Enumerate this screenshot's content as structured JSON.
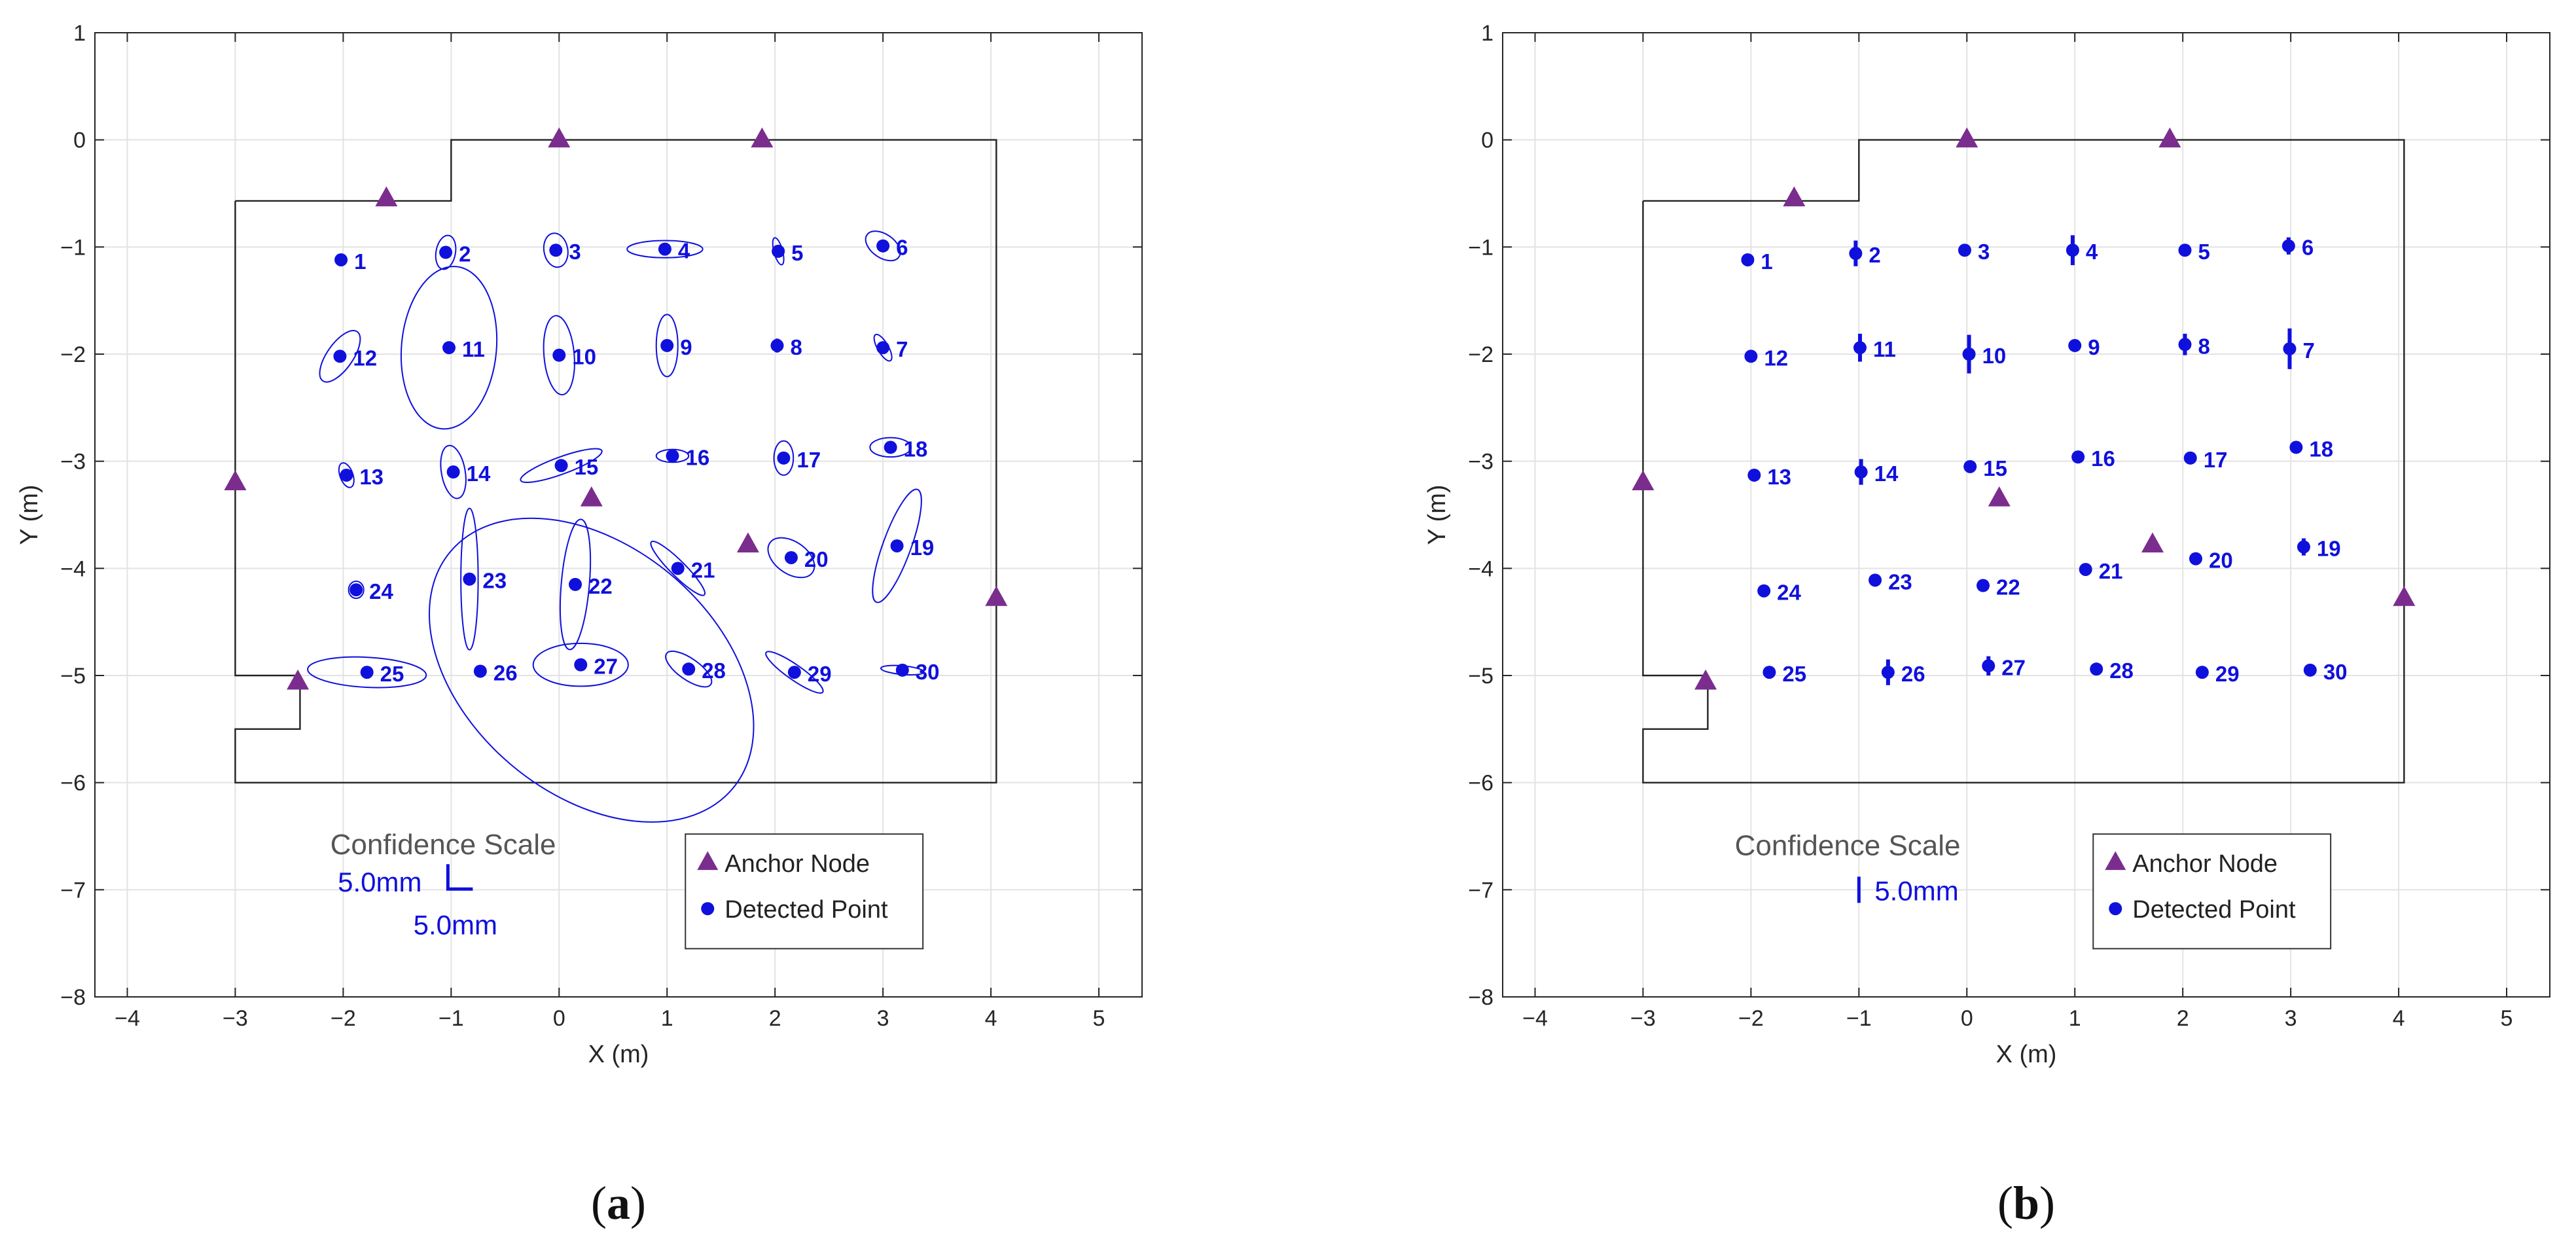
{
  "chart_data": [
    {
      "type": "scatter",
      "panel_label": "(a)",
      "panel_letter": "a",
      "xlabel": "X (m)",
      "ylabel": "Y (m)",
      "xlim": [
        -4.3,
        5.4
      ],
      "ylim": [
        -8,
        1
      ],
      "xticks": [
        -4,
        -3,
        -2,
        -1,
        0,
        1,
        2,
        3,
        4,
        5
      ],
      "yticks": [
        -8,
        -7,
        -6,
        -5,
        -4,
        -3,
        -2,
        -1,
        0,
        1
      ],
      "grid": true,
      "uncertainty": "ellipse",
      "confidence_scale": {
        "title": "Confidence Scale",
        "x_label": "5.0mm",
        "y_label": "5.0mm"
      },
      "legend": {
        "position": "bottom-right",
        "entries": [
          "Anchor Node",
          "Detected Point"
        ]
      },
      "boundary": [
        [
          -3,
          -0.57
        ],
        [
          -1,
          -0.57
        ],
        [
          -1,
          0
        ],
        [
          4.05,
          0
        ],
        [
          4.05,
          -6
        ],
        [
          -3,
          -6
        ],
        [
          -3,
          -5.5
        ],
        [
          -2.4,
          -5.5
        ],
        [
          -2.4,
          -5
        ],
        [
          -3,
          -5
        ],
        [
          -3,
          -0.57
        ]
      ],
      "anchors": [
        [
          -1.6,
          -0.55
        ],
        [
          0,
          0
        ],
        [
          1.88,
          0
        ],
        [
          -3,
          -3.2
        ],
        [
          0.3,
          -3.35
        ],
        [
          1.75,
          -3.78
        ],
        [
          4.05,
          -4.28
        ],
        [
          -2.42,
          -5.06
        ]
      ],
      "points": [
        {
          "id": "1",
          "x": -2.02,
          "y": -1.12,
          "rx": 0,
          "ry": 0,
          "angle": 0
        },
        {
          "id": "2",
          "x": -1.05,
          "y": -1.05,
          "rx": 0.09,
          "ry": 0.16,
          "angle": -10
        },
        {
          "id": "3",
          "x": -0.03,
          "y": -1.03,
          "rx": 0.11,
          "ry": 0.16,
          "angle": 10
        },
        {
          "id": "4",
          "x": 0.98,
          "y": -1.02,
          "rx": 0.35,
          "ry": 0.08,
          "angle": 0
        },
        {
          "id": "5",
          "x": 2.03,
          "y": -1.04,
          "rx": 0.04,
          "ry": 0.13,
          "angle": 15
        },
        {
          "id": "6",
          "x": 3.0,
          "y": -0.99,
          "rx": 0.18,
          "ry": 0.11,
          "angle": -35
        },
        {
          "id": "7",
          "x": 3.0,
          "y": -1.94,
          "rx": 0.05,
          "ry": 0.14,
          "angle": 30
        },
        {
          "id": "8",
          "x": 2.02,
          "y": -1.92,
          "rx": 0.04,
          "ry": 0.06,
          "angle": 0
        },
        {
          "id": "9",
          "x": 1.0,
          "y": -1.92,
          "rx": 0.1,
          "ry": 0.29,
          "angle": 0
        },
        {
          "id": "10",
          "x": 0.0,
          "y": -2.01,
          "rx": 0.14,
          "ry": 0.37,
          "angle": 5
        },
        {
          "id": "11",
          "x": -1.02,
          "y": -1.94,
          "rx": 0.44,
          "ry": 0.76,
          "angle": -5
        },
        {
          "id": "12",
          "x": -2.03,
          "y": -2.02,
          "rx": 0.12,
          "ry": 0.28,
          "angle": -35
        },
        {
          "id": "13",
          "x": -1.97,
          "y": -3.13,
          "rx": 0.06,
          "ry": 0.12,
          "angle": 20
        },
        {
          "id": "14",
          "x": -0.98,
          "y": -3.1,
          "rx": 0.11,
          "ry": 0.25,
          "angle": 10
        },
        {
          "id": "15",
          "x": 0.02,
          "y": -3.04,
          "rx": 0.4,
          "ry": 0.08,
          "angle": 20
        },
        {
          "id": "16",
          "x": 1.05,
          "y": -2.95,
          "rx": 0.15,
          "ry": 0.06,
          "angle": 0
        },
        {
          "id": "17",
          "x": 2.08,
          "y": -2.97,
          "rx": 0.09,
          "ry": 0.16,
          "angle": 0
        },
        {
          "id": "18",
          "x": 3.07,
          "y": -2.87,
          "rx": 0.19,
          "ry": 0.09,
          "angle": 0
        },
        {
          "id": "19",
          "x": 3.13,
          "y": -3.79,
          "rx": 0.13,
          "ry": 0.56,
          "angle": -20
        },
        {
          "id": "20",
          "x": 2.15,
          "y": -3.9,
          "rx": 0.24,
          "ry": 0.15,
          "angle": -35
        },
        {
          "id": "21",
          "x": 1.1,
          "y": -4.0,
          "rx": 0.07,
          "ry": 0.35,
          "angle": 45
        },
        {
          "id": "22",
          "x": 0.15,
          "y": -4.15,
          "rx": 0.13,
          "ry": 0.61,
          "angle": -5
        },
        {
          "id": "23",
          "x": -0.83,
          "y": -4.1,
          "rx": 0.08,
          "ry": 0.66,
          "angle": 0
        },
        {
          "id": "24",
          "x": -1.88,
          "y": -4.2,
          "rx": 0.07,
          "ry": 0.08,
          "angle": 0
        },
        {
          "id": "25",
          "x": -1.78,
          "y": -4.97,
          "rx": 0.55,
          "ry": 0.14,
          "angle": -3
        },
        {
          "id": "26",
          "x": -0.73,
          "y": -4.96,
          "rx": 0,
          "ry": 0,
          "angle": 0
        },
        {
          "id": "27",
          "x": 0.2,
          "y": -4.9,
          "rx": 0.44,
          "ry": 0.2,
          "angle": 0
        },
        {
          "id": "28",
          "x": 1.2,
          "y": -4.94,
          "rx": 0.25,
          "ry": 0.1,
          "angle": -35
        },
        {
          "id": "29",
          "x": 2.18,
          "y": -4.97,
          "rx": 0.32,
          "ry": 0.07,
          "angle": -35
        },
        {
          "id": "30",
          "x": 3.18,
          "y": -4.95,
          "rx": 0.2,
          "ry": 0.04,
          "angle": -5
        },
        {
          "id": "",
          "x": 0.3,
          "y": -4.95,
          "rx": 1.15,
          "ry": 1.72,
          "angle": 50
        }
      ]
    },
    {
      "type": "scatter",
      "panel_label": "(b)",
      "panel_letter": "b",
      "xlabel": "X (m)",
      "ylabel": "Y (m)",
      "xlim": [
        -4.3,
        5.4
      ],
      "ylim": [
        -8,
        1
      ],
      "xticks": [
        -4,
        -3,
        -2,
        -1,
        0,
        1,
        2,
        3,
        4,
        5
      ],
      "yticks": [
        -8,
        -7,
        -6,
        -5,
        -4,
        -3,
        -2,
        -1,
        0,
        1
      ],
      "grid": true,
      "uncertainty": "vertical-bar",
      "confidence_scale": {
        "title": "Confidence Scale",
        "y_label": "5.0mm"
      },
      "legend": {
        "position": "bottom-right",
        "entries": [
          "Anchor Node",
          "Detected Point"
        ]
      },
      "boundary": [
        [
          -3,
          -0.57
        ],
        [
          -1,
          -0.57
        ],
        [
          -1,
          0
        ],
        [
          4.05,
          0
        ],
        [
          4.05,
          -6
        ],
        [
          -3,
          -6
        ],
        [
          -3,
          -5.5
        ],
        [
          -2.4,
          -5.5
        ],
        [
          -2.4,
          -5
        ],
        [
          -3,
          -5
        ],
        [
          -3,
          -0.57
        ]
      ],
      "anchors": [
        [
          -1.6,
          -0.55
        ],
        [
          0,
          0
        ],
        [
          1.88,
          0
        ],
        [
          -3,
          -3.2
        ],
        [
          0.3,
          -3.35
        ],
        [
          1.72,
          -3.78
        ],
        [
          4.05,
          -4.28
        ],
        [
          -2.42,
          -5.06
        ]
      ],
      "points": [
        {
          "id": "1",
          "x": -2.03,
          "y": -1.12,
          "err": 0.03
        },
        {
          "id": "2",
          "x": -1.03,
          "y": -1.06,
          "err": 0.12
        },
        {
          "id": "3",
          "x": -0.02,
          "y": -1.03,
          "err": 0.03
        },
        {
          "id": "4",
          "x": 0.98,
          "y": -1.03,
          "err": 0.14
        },
        {
          "id": "5",
          "x": 2.02,
          "y": -1.03,
          "err": 0.03
        },
        {
          "id": "6",
          "x": 2.98,
          "y": -0.99,
          "err": 0.08
        },
        {
          "id": "7",
          "x": 2.99,
          "y": -1.95,
          "err": 0.19
        },
        {
          "id": "8",
          "x": 2.02,
          "y": -1.91,
          "err": 0.1
        },
        {
          "id": "9",
          "x": 1.0,
          "y": -1.92,
          "err": 0.05
        },
        {
          "id": "10",
          "x": 0.02,
          "y": -2.0,
          "err": 0.18
        },
        {
          "id": "11",
          "x": -0.99,
          "y": -1.94,
          "err": 0.13
        },
        {
          "id": "12",
          "x": -2.0,
          "y": -2.02,
          "err": 0.03
        },
        {
          "id": "13",
          "x": -1.97,
          "y": -3.13,
          "err": 0.03
        },
        {
          "id": "14",
          "x": -0.98,
          "y": -3.1,
          "err": 0.12
        },
        {
          "id": "15",
          "x": 0.03,
          "y": -3.05,
          "err": 0.04
        },
        {
          "id": "16",
          "x": 1.03,
          "y": -2.96,
          "err": 0.03
        },
        {
          "id": "17",
          "x": 2.07,
          "y": -2.97,
          "err": 0.03
        },
        {
          "id": "18",
          "x": 3.05,
          "y": -2.87,
          "err": 0.04
        },
        {
          "id": "19",
          "x": 3.12,
          "y": -3.8,
          "err": 0.08
        },
        {
          "id": "20",
          "x": 2.12,
          "y": -3.91,
          "err": 0.04
        },
        {
          "id": "21",
          "x": 1.1,
          "y": -4.01,
          "err": 0.03
        },
        {
          "id": "22",
          "x": 0.15,
          "y": -4.16,
          "err": 0.03
        },
        {
          "id": "23",
          "x": -0.85,
          "y": -4.11,
          "err": 0.03
        },
        {
          "id": "24",
          "x": -1.88,
          "y": -4.21,
          "err": 0.03
        },
        {
          "id": "25",
          "x": -1.83,
          "y": -4.97,
          "err": 0.03
        },
        {
          "id": "26",
          "x": -0.73,
          "y": -4.97,
          "err": 0.12
        },
        {
          "id": "27",
          "x": 0.2,
          "y": -4.91,
          "err": 0.09
        },
        {
          "id": "28",
          "x": 1.2,
          "y": -4.94,
          "err": 0.03
        },
        {
          "id": "29",
          "x": 2.18,
          "y": -4.97,
          "err": 0.03
        },
        {
          "id": "30",
          "x": 3.18,
          "y": -4.95,
          "err": 0.03
        }
      ]
    }
  ],
  "colors": {
    "anchor": "#7b2d8e",
    "point": "#1010dd",
    "grid": "#e3e3e3",
    "axis": "#262626",
    "boundary": "#222222"
  }
}
